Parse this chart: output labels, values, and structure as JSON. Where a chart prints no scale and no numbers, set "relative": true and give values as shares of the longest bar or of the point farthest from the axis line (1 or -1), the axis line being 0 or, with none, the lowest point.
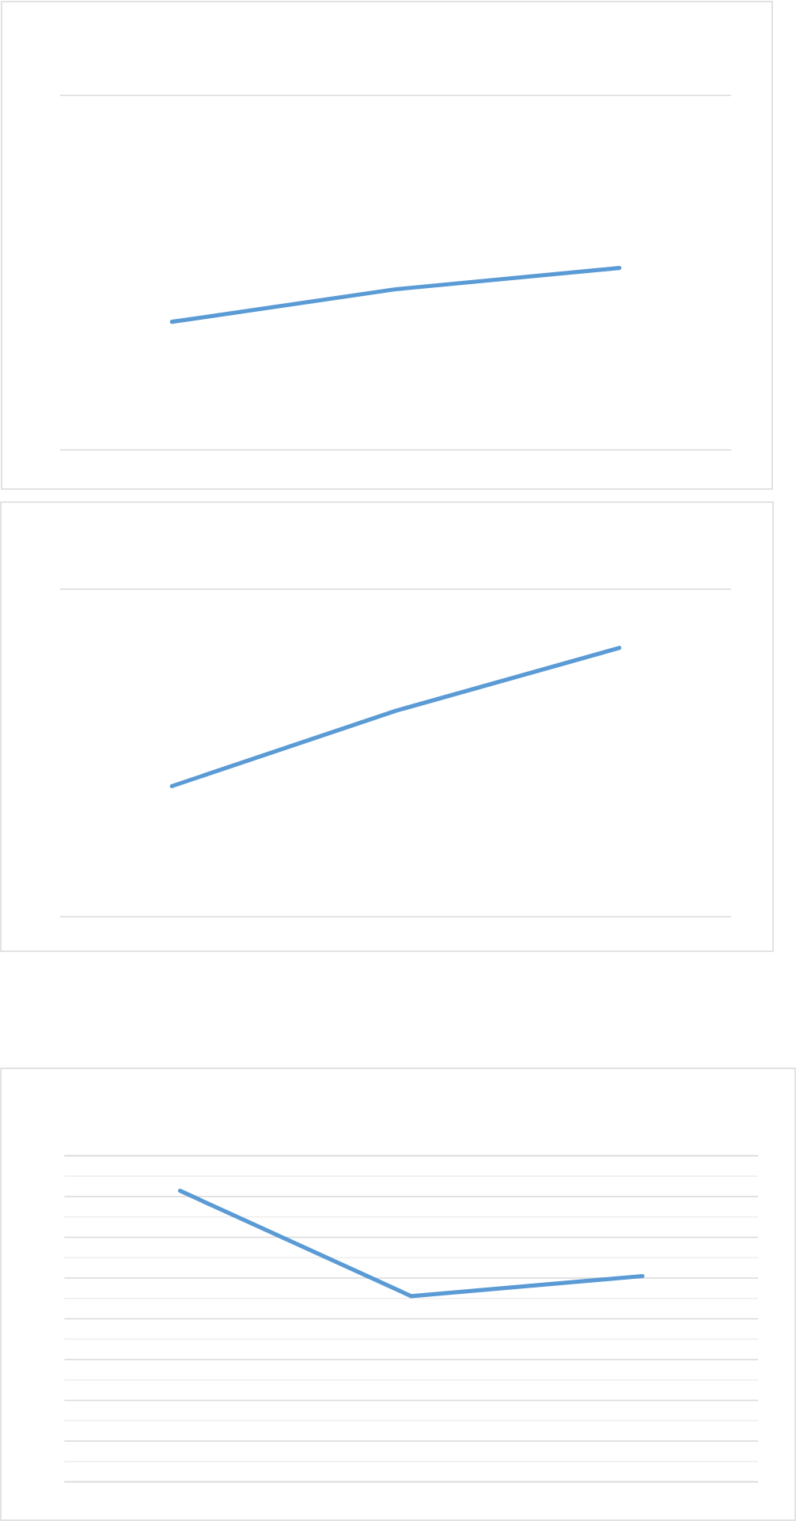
{
  "chart_data": [
    {
      "type": "line",
      "relative": true,
      "categories": [
        null,
        null,
        null
      ],
      "series": [
        {
          "color": "#5b9bd5",
          "values": [
            0.704,
            0.883,
            1
          ]
        }
      ],
      "line_style": "solid"
    },
    {
      "type": "line",
      "relative": true,
      "categories": [
        null,
        null,
        null
      ],
      "series": [
        {
          "color": "#5b9bd5",
          "values": [
            0.486,
            0.766,
            1
          ]
        }
      ],
      "line_style": "solid"
    },
    {
      "type": "line",
      "relative": true,
      "categories": [
        null,
        null,
        null
      ],
      "series": [
        {
          "color": "#5b9bd5",
          "values": [
            1,
            0.638,
            0.707
          ]
        }
      ],
      "grid": "y",
      "line_style": "solid"
    }
  ]
}
